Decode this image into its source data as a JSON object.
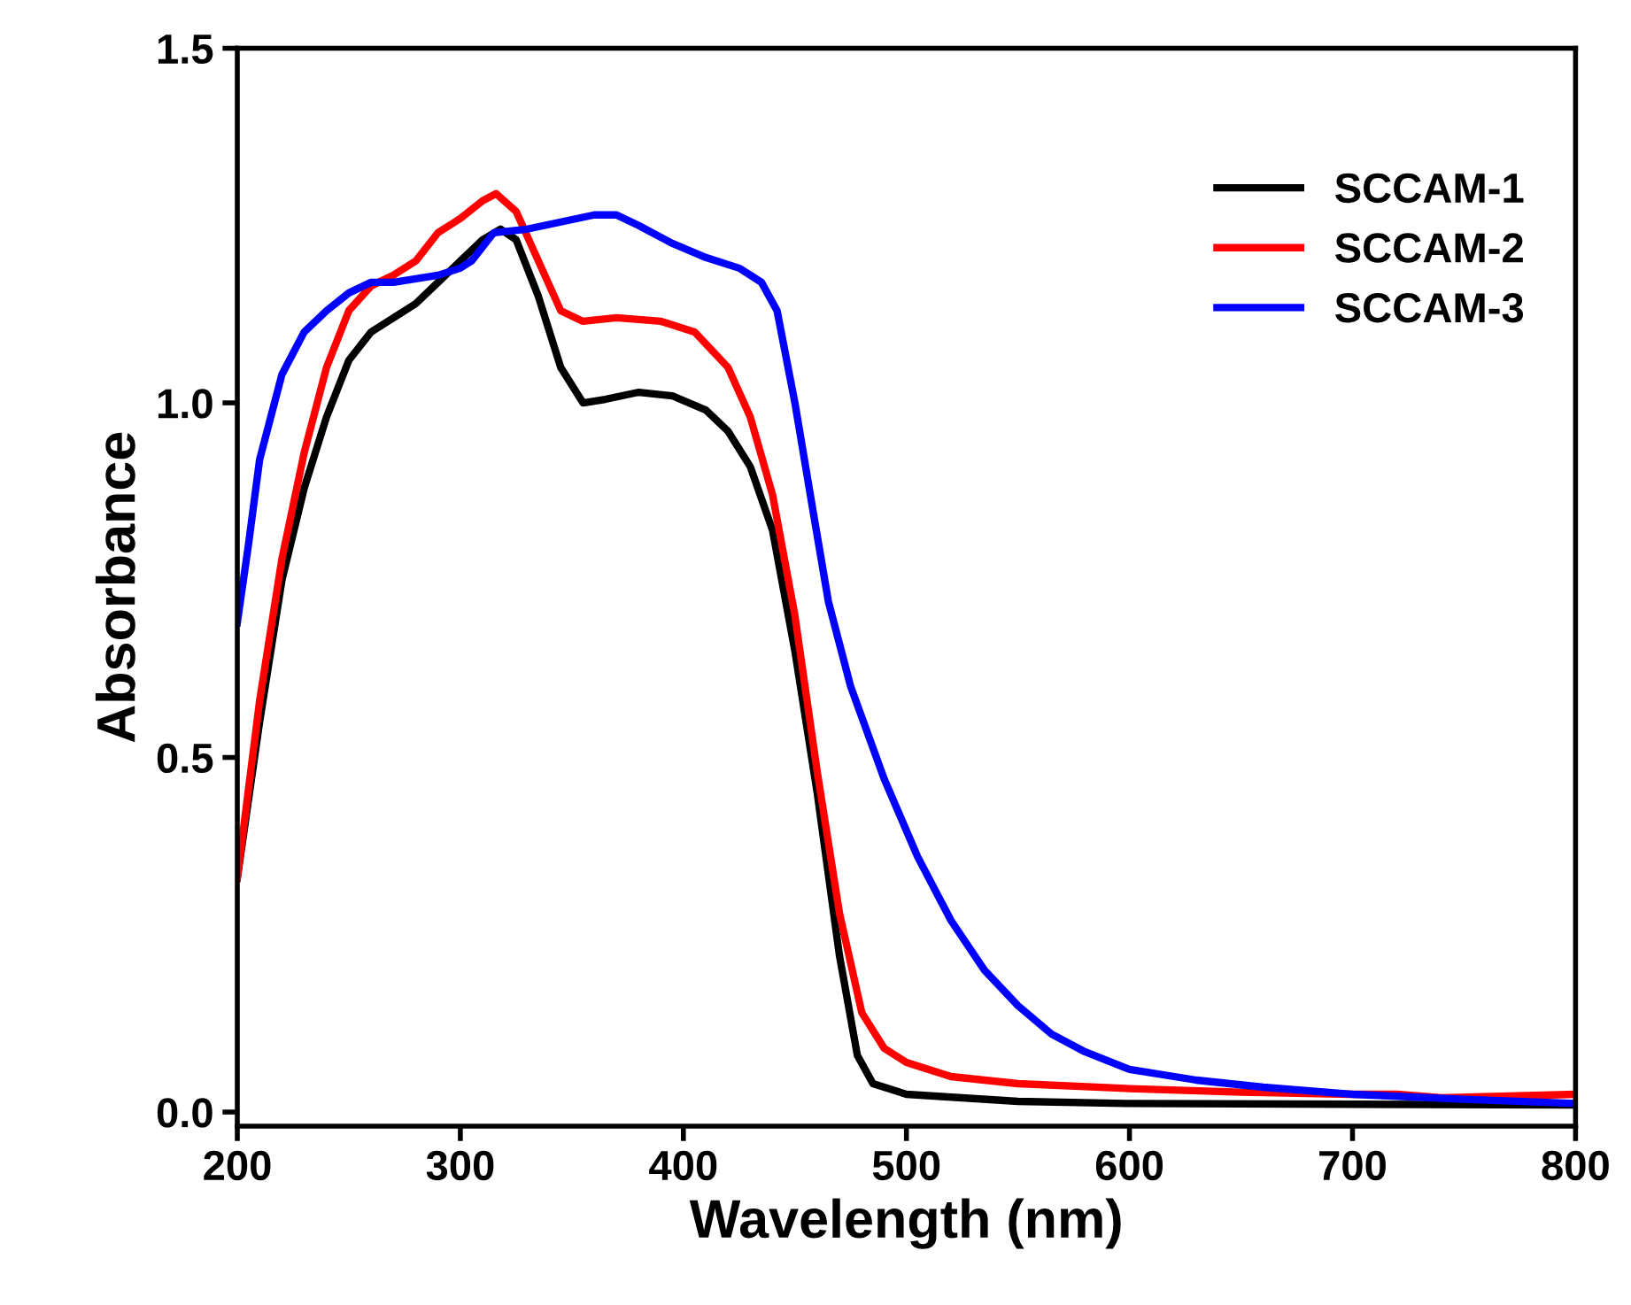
{
  "chart_data": {
    "type": "line",
    "xlabel": "Wavelength (nm)",
    "ylabel": "Absorbance",
    "xlim": [
      200,
      800
    ],
    "xticks": [
      200,
      300,
      400,
      500,
      600,
      700,
      800
    ],
    "ylim": [
      -0.02,
      1.5
    ],
    "yticks": [
      {
        "value": 0,
        "label": "0.0"
      },
      0.5,
      {
        "value": 1,
        "label": "1.0"
      },
      1.5
    ],
    "legend": "top right",
    "grid": false,
    "series": [
      {
        "name": "SCCAM-1",
        "color": "#000000",
        "x": [
          200,
          210,
          220,
          230,
          240,
          250,
          260,
          270,
          280,
          290,
          300,
          310,
          318,
          325,
          335,
          345,
          355,
          365,
          380,
          395,
          410,
          420,
          430,
          440,
          450,
          460,
          470,
          478,
          485,
          500,
          550,
          600,
          800
        ],
        "values": [
          0.33,
          0.55,
          0.75,
          0.88,
          0.98,
          1.06,
          1.1,
          1.12,
          1.14,
          1.17,
          1.2,
          1.23,
          1.245,
          1.23,
          1.15,
          1.05,
          1.0,
          1.005,
          1.015,
          1.01,
          0.99,
          0.96,
          0.91,
          0.82,
          0.65,
          0.45,
          0.22,
          0.08,
          0.04,
          0.025,
          0.015,
          0.012,
          0.01
        ]
      },
      {
        "name": "SCCAM-2",
        "color": "#ff0000",
        "x": [
          200,
          210,
          220,
          230,
          240,
          250,
          260,
          270,
          280,
          290,
          300,
          310,
          316,
          325,
          335,
          345,
          355,
          370,
          390,
          405,
          420,
          430,
          440,
          450,
          460,
          470,
          480,
          490,
          500,
          520,
          550,
          600,
          650,
          700,
          720,
          740,
          800
        ],
        "values": [
          0.33,
          0.58,
          0.78,
          0.93,
          1.05,
          1.13,
          1.165,
          1.18,
          1.2,
          1.24,
          1.26,
          1.285,
          1.295,
          1.27,
          1.2,
          1.13,
          1.115,
          1.12,
          1.115,
          1.1,
          1.05,
          0.98,
          0.87,
          0.7,
          0.48,
          0.28,
          0.14,
          0.09,
          0.07,
          0.05,
          0.04,
          0.033,
          0.028,
          0.025,
          0.025,
          0.02,
          0.025
        ]
      },
      {
        "name": "SCCAM-3",
        "color": "#0000ff",
        "x": [
          200,
          205,
          210,
          220,
          230,
          240,
          250,
          260,
          270,
          280,
          290,
          300,
          305,
          315,
          330,
          345,
          360,
          370,
          380,
          395,
          410,
          425,
          435,
          442,
          450,
          458,
          465,
          475,
          490,
          505,
          520,
          535,
          550,
          565,
          580,
          600,
          630,
          660,
          700,
          750,
          800
        ],
        "values": [
          0.69,
          0.8,
          0.92,
          1.04,
          1.1,
          1.13,
          1.155,
          1.17,
          1.17,
          1.175,
          1.18,
          1.19,
          1.2,
          1.24,
          1.245,
          1.255,
          1.265,
          1.265,
          1.25,
          1.225,
          1.205,
          1.19,
          1.17,
          1.13,
          1.0,
          0.85,
          0.72,
          0.6,
          0.47,
          0.36,
          0.27,
          0.2,
          0.15,
          0.11,
          0.085,
          0.06,
          0.045,
          0.035,
          0.025,
          0.018,
          0.012
        ]
      }
    ]
  }
}
